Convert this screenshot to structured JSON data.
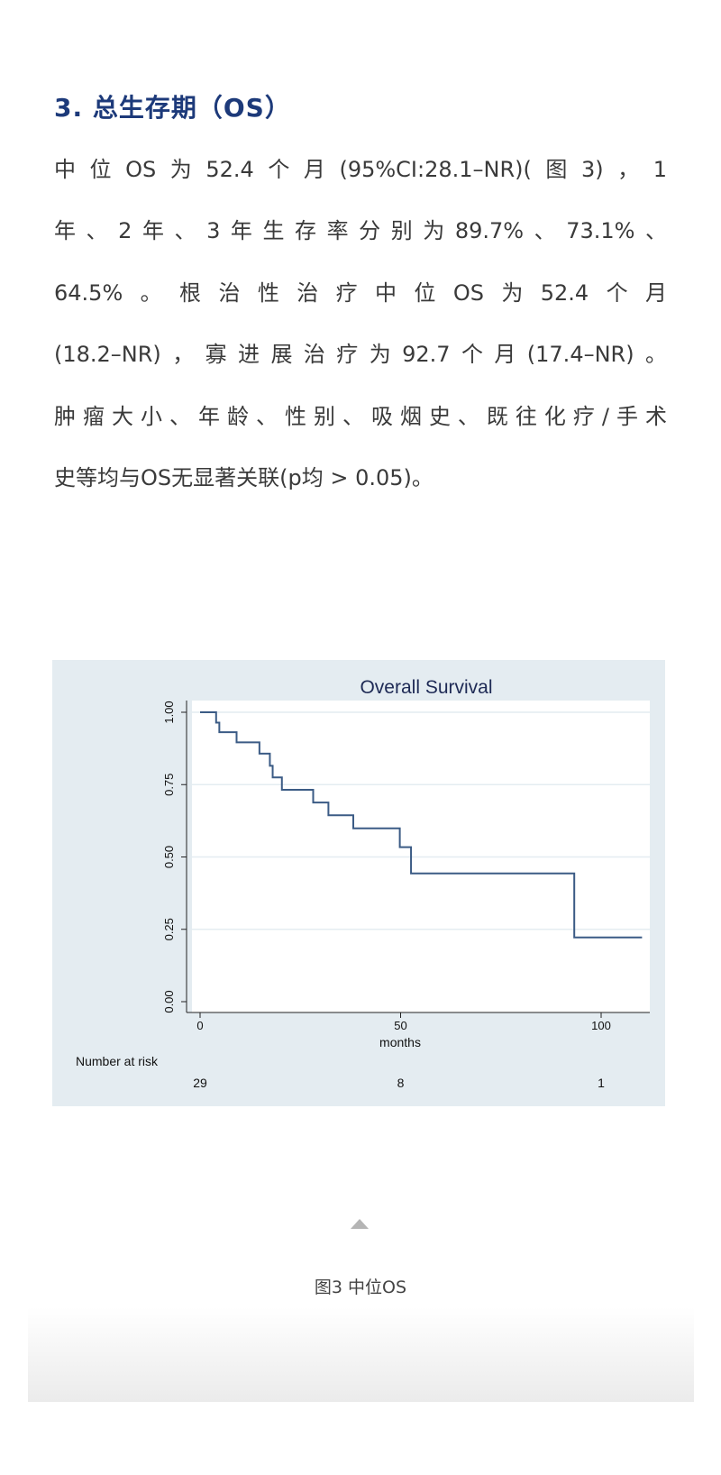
{
  "section_title": "3. 总生存期（OS）",
  "paragraph_lines": [
    "中位OS为52.4个月(95%CI:28.1–NR)(图3)，1",
    "年、2年、3年生存率分别为89.7%、73.1%、",
    "64.5%。根治性治疗中位OS为52.4个月",
    "(18.2–NR)，寡进展治疗为92.7个月(17.4–NR)。",
    "肿瘤大小、年龄、性别、吸烟史、既往化疗/手术",
    "史等均与OS无显著关联(p均 > 0.05)。"
  ],
  "caption": "图3 中位OS",
  "chart_data": {
    "type": "line",
    "subtype": "kaplan-meier step",
    "title": "Overall Survival",
    "xlabel": "months",
    "ylabel": "",
    "xlim": [
      0,
      110
    ],
    "ylim": [
      0,
      1
    ],
    "xticks": [
      "0",
      "50",
      "100"
    ],
    "yticks": [
      "0.00",
      "0.25",
      "0.50",
      "0.75",
      "1.00"
    ],
    "grid": "horizontal",
    "line_color": "#3b5b85",
    "background_color": "#e4ecf1",
    "x": [
      0,
      4.0,
      4.8,
      9.1,
      14.8,
      17.4,
      18.1,
      20.4,
      28.2,
      32.0,
      38.2,
      49.8,
      52.6,
      93.3,
      110.2
    ],
    "y": [
      1.0,
      0.964,
      0.931,
      0.896,
      0.857,
      0.815,
      0.775,
      0.732,
      0.688,
      0.644,
      0.599,
      0.534,
      0.443,
      0.222,
      0.222
    ],
    "risk_table": {
      "label": "Number at risk",
      "times": [
        0,
        50,
        100
      ],
      "counts": [
        "29",
        "8",
        "1"
      ]
    }
  }
}
